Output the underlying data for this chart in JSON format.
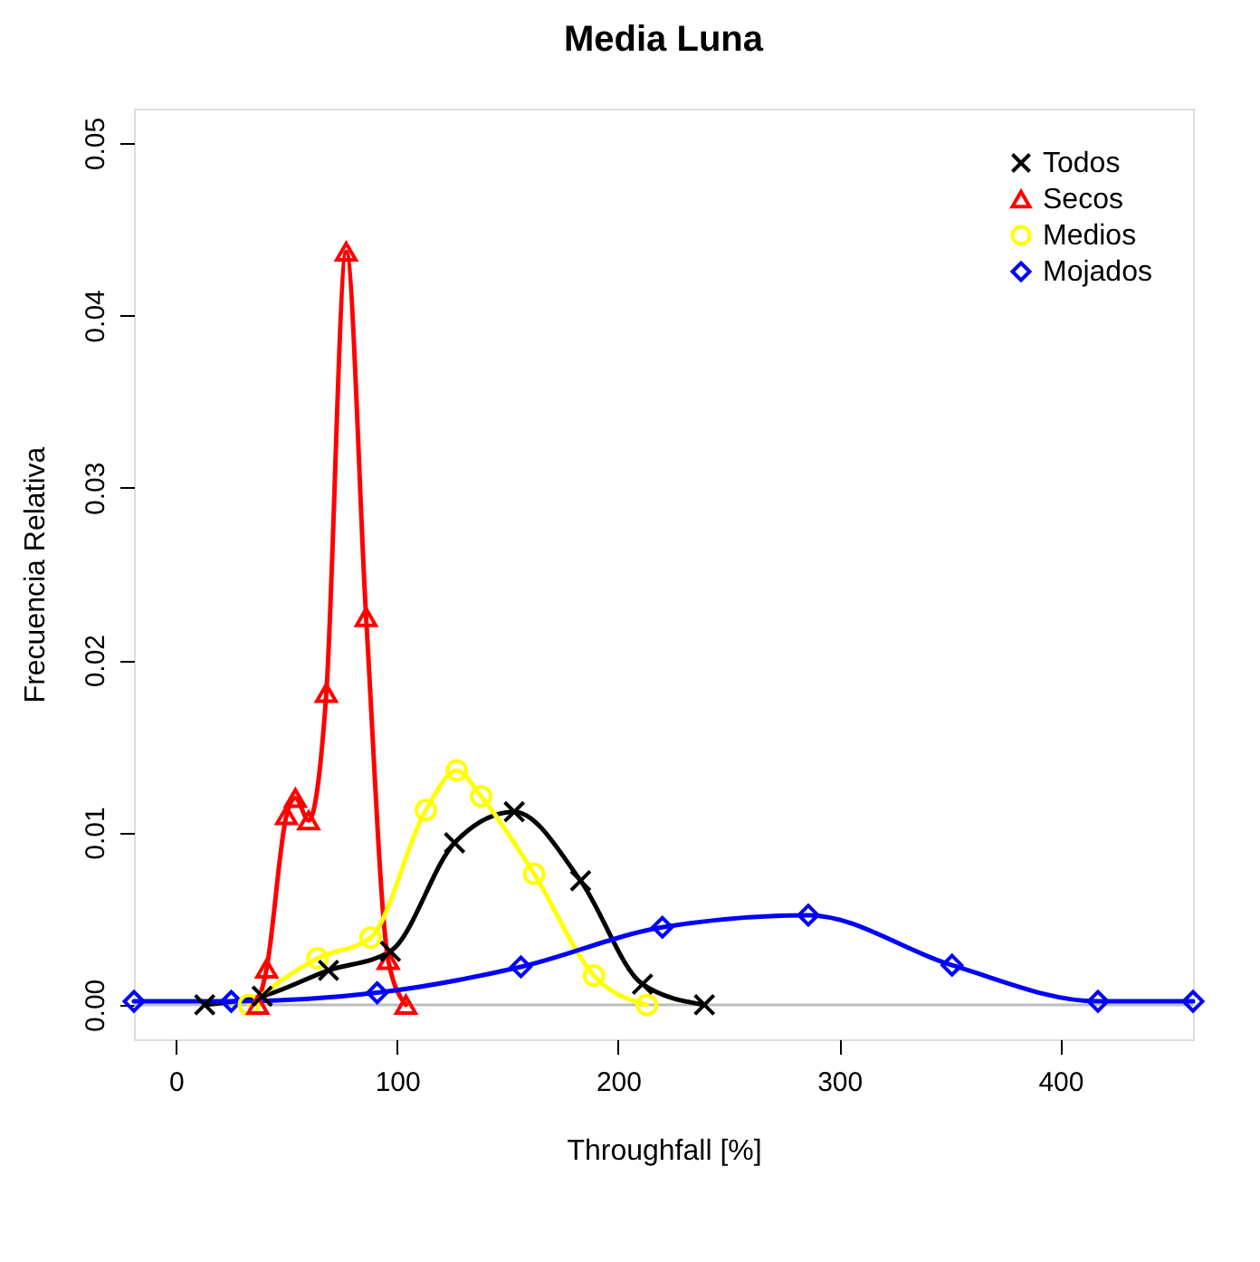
{
  "chart_data": {
    "type": "line",
    "title": "Media Luna",
    "xlabel": "Throughfall [%]",
    "ylabel": "Frecuencia Relativa",
    "xlim": [
      -19,
      460
    ],
    "xticks": [
      0,
      100,
      200,
      300,
      400
    ],
    "ylim": [
      -0.002,
      0.052
    ],
    "yticks": [
      {
        "value": 0,
        "label": "0.00"
      },
      {
        "value": 0.01,
        "label": "0.01"
      },
      {
        "value": 0.02,
        "label": "0.02"
      },
      {
        "value": 0.03,
        "label": "0.03"
      },
      {
        "value": 0.04,
        "label": "0.04"
      },
      {
        "value": 0.05,
        "label": "0.05"
      }
    ],
    "grid": false,
    "legend": "top right",
    "line_style": "solid",
    "ref_lines": [
      {
        "axis": "y",
        "value": 0,
        "label": null,
        "color": "#bebebe"
      }
    ],
    "series": [
      {
        "name": "Todos",
        "color": "#000000",
        "marker": "cross",
        "x": [
          13,
          39,
          69,
          97,
          126,
          153,
          183,
          211,
          239
        ],
        "values": [
          0,
          0.0005,
          0.002,
          0.0031,
          0.0094,
          0.0112,
          0.0072,
          0.0012,
          0
        ]
      },
      {
        "name": "Secos",
        "color": "#ff0000",
        "marker": "triangle",
        "x": [
          37,
          41,
          50,
          54,
          60,
          68,
          77,
          86,
          96,
          104
        ],
        "values": [
          0,
          0.0021,
          0.011,
          0.012,
          0.0107,
          0.0181,
          0.0437,
          0.0225,
          0.0026,
          0
        ]
      },
      {
        "name": "Medios",
        "color": "#ffff00",
        "marker": "circle",
        "x": [
          33,
          64,
          88,
          113,
          127,
          138,
          162,
          189,
          213
        ],
        "values": [
          0,
          0.0027,
          0.0039,
          0.0113,
          0.0136,
          0.0121,
          0.0076,
          0.0017,
          0
        ]
      },
      {
        "name": "Mojados",
        "color": "#0000ff",
        "marker": "diamond",
        "x": [
          -19,
          25,
          91,
          156,
          220,
          286,
          351,
          417,
          460
        ],
        "values": [
          0.0002,
          0.0002,
          0.0007,
          0.0022,
          0.0045,
          0.0052,
          0.0023,
          0.0002,
          0.0002
        ]
      }
    ]
  }
}
